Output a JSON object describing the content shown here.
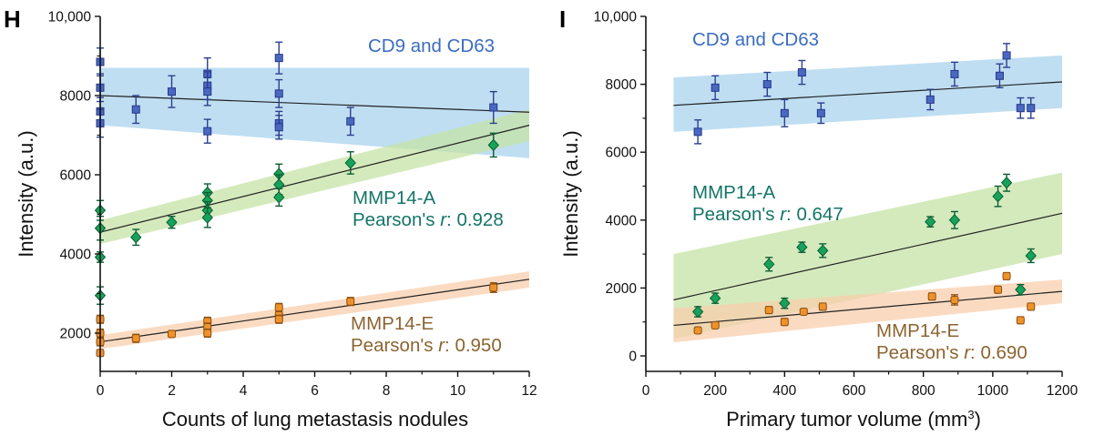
{
  "chart_data": [
    {
      "type": "scatter",
      "panel": "H",
      "xlabel": "Counts of lung metastasis nodules",
      "ylabel": "Intensity (a.u.)",
      "xlim": [
        0,
        12
      ],
      "ylim": [
        1000,
        10000
      ],
      "xticks": [
        0,
        2,
        4,
        6,
        8,
        10,
        12
      ],
      "yticks": [
        2000,
        4000,
        6000,
        8000,
        10000
      ],
      "ytick_labels": [
        "2000",
        "4000",
        "6000",
        "8000",
        "10,000"
      ],
      "grid": false,
      "fit_x": [
        0,
        12
      ],
      "series": [
        {
          "name": "CD9 and CD63",
          "annotation": [
            "CD9 and CD63"
          ],
          "color": "#4a68c0",
          "label_color": "#3a6cc0",
          "band_color": "#a9d3ee",
          "marker": "square",
          "points": [
            {
              "x": 0,
              "y": 8850,
              "e": 350
            },
            {
              "x": 0,
              "y": 8200,
              "e": 350
            },
            {
              "x": 0,
              "y": 7600,
              "e": 350
            },
            {
              "x": 0,
              "y": 7300,
              "e": 350
            },
            {
              "x": 1,
              "y": 7650,
              "e": 350
            },
            {
              "x": 2,
              "y": 8100,
              "e": 400
            },
            {
              "x": 3,
              "y": 8550,
              "e": 400
            },
            {
              "x": 3,
              "y": 8250,
              "e": 350
            },
            {
              "x": 3,
              "y": 8100,
              "e": 350
            },
            {
              "x": 3,
              "y": 7100,
              "e": 300
            },
            {
              "x": 5,
              "y": 8950,
              "e": 400
            },
            {
              "x": 5,
              "y": 8050,
              "e": 350
            },
            {
              "x": 5,
              "y": 7300,
              "e": 300
            },
            {
              "x": 5,
              "y": 7200,
              "e": 300
            },
            {
              "x": 7,
              "y": 7350,
              "e": 350
            },
            {
              "x": 11,
              "y": 7700,
              "e": 400
            }
          ],
          "fit_y": [
            8000,
            7580
          ],
          "band_lo": [
            7250,
            6420
          ],
          "band_hi": [
            8700,
            8700
          ]
        },
        {
          "name": "MMP14-A",
          "annotation": [
            "MMP14-A",
            "Pearson's r: 0.928"
          ],
          "color": "#17a25a",
          "label_color": "#147567",
          "band_color": "#c6e3a6",
          "marker": "diamond",
          "points": [
            {
              "x": 0,
              "y": 5100,
              "e": 250
            },
            {
              "x": 0,
              "y": 4650,
              "e": 300
            },
            {
              "x": 0,
              "y": 3920,
              "e": 130
            },
            {
              "x": 0,
              "y": 2950,
              "e": 220
            },
            {
              "x": 1,
              "y": 4420,
              "e": 200
            },
            {
              "x": 2,
              "y": 4800,
              "e": 150
            },
            {
              "x": 3,
              "y": 5550,
              "e": 220
            },
            {
              "x": 3,
              "y": 5350,
              "e": 200
            },
            {
              "x": 3,
              "y": 5100,
              "e": 220
            },
            {
              "x": 3,
              "y": 4920,
              "e": 250
            },
            {
              "x": 5,
              "y": 6020,
              "e": 250
            },
            {
              "x": 5,
              "y": 5750,
              "e": 250
            },
            {
              "x": 5,
              "y": 5430,
              "e": 220
            },
            {
              "x": 7,
              "y": 6300,
              "e": 280
            },
            {
              "x": 11,
              "y": 6750,
              "e": 300
            }
          ],
          "fit_y": [
            4550,
            7250
          ],
          "band_lo": [
            4250,
            6850
          ],
          "band_hi": [
            4850,
            7650
          ]
        },
        {
          "name": "MMP14-E",
          "annotation": [
            "MMP14-E",
            "Pearson's r: 0.950"
          ],
          "color": "#f0922a",
          "label_color": "#8c6430",
          "band_color": "#f8cfad",
          "marker": "circle",
          "points": [
            {
              "x": 0,
              "y": 2350,
              "e": 100
            },
            {
              "x": 0,
              "y": 2000,
              "e": 100
            },
            {
              "x": 0,
              "y": 1780,
              "e": 100
            },
            {
              "x": 0,
              "y": 1500,
              "e": 80
            },
            {
              "x": 1,
              "y": 1870,
              "e": 100
            },
            {
              "x": 2,
              "y": 1980,
              "e": 80
            },
            {
              "x": 3,
              "y": 2300,
              "e": 100
            },
            {
              "x": 3,
              "y": 2150,
              "e": 100
            },
            {
              "x": 3,
              "y": 2000,
              "e": 100
            },
            {
              "x": 5,
              "y": 2650,
              "e": 100
            },
            {
              "x": 5,
              "y": 2450,
              "e": 100
            },
            {
              "x": 5,
              "y": 2350,
              "e": 100
            },
            {
              "x": 7,
              "y": 2800,
              "e": 100
            },
            {
              "x": 11,
              "y": 3150,
              "e": 120
            }
          ],
          "fit_y": [
            1780,
            3360
          ],
          "band_lo": [
            1600,
            3150
          ],
          "band_hi": [
            1950,
            3560
          ]
        }
      ]
    },
    {
      "type": "scatter",
      "panel": "I",
      "xlabel": "Primary tumor volume (mm³)",
      "ylabel": "Intensity (a.u.)",
      "xlim": [
        0,
        1200
      ],
      "ylim": [
        -500,
        10000
      ],
      "xticks": [
        0,
        200,
        400,
        600,
        800,
        1000,
        1200
      ],
      "yticks": [
        0,
        2000,
        4000,
        6000,
        8000,
        10000
      ],
      "ytick_labels": [
        "0",
        "2000",
        "4000",
        "6000",
        "8000",
        "10,000"
      ],
      "grid": false,
      "fit_x": [
        80,
        1200
      ],
      "series": [
        {
          "name": "CD9 and CD63",
          "annotation": [
            "CD9 and CD63"
          ],
          "color": "#4a68c0",
          "label_color": "#3a6cc0",
          "band_color": "#a9d3ee",
          "marker": "square",
          "points": [
            {
              "x": 150,
              "y": 6600,
              "e": 350
            },
            {
              "x": 200,
              "y": 7900,
              "e": 350
            },
            {
              "x": 350,
              "y": 8000,
              "e": 350
            },
            {
              "x": 400,
              "y": 7150,
              "e": 400
            },
            {
              "x": 450,
              "y": 8350,
              "e": 350
            },
            {
              "x": 505,
              "y": 7150,
              "e": 300
            },
            {
              "x": 820,
              "y": 7550,
              "e": 300
            },
            {
              "x": 890,
              "y": 8300,
              "e": 350
            },
            {
              "x": 1020,
              "y": 8250,
              "e": 350
            },
            {
              "x": 1040,
              "y": 8850,
              "e": 350
            },
            {
              "x": 1080,
              "y": 7300,
              "e": 300
            },
            {
              "x": 1110,
              "y": 7300,
              "e": 300
            }
          ],
          "fit_y": [
            7380,
            8070
          ],
          "band_lo": [
            6600,
            7300
          ],
          "band_hi": [
            8200,
            8850
          ]
        },
        {
          "name": "MMP14-A",
          "annotation": [
            "MMP14-A",
            "Pearson's r: 0.647"
          ],
          "color": "#17a25a",
          "label_color": "#147567",
          "band_color": "#c6e3a6",
          "marker": "diamond",
          "points": [
            {
              "x": 150,
              "y": 1300,
              "e": 150
            },
            {
              "x": 200,
              "y": 1700,
              "e": 150
            },
            {
              "x": 355,
              "y": 2700,
              "e": 200
            },
            {
              "x": 400,
              "y": 1550,
              "e": 150
            },
            {
              "x": 450,
              "y": 3200,
              "e": 150
            },
            {
              "x": 510,
              "y": 3100,
              "e": 200
            },
            {
              "x": 820,
              "y": 3950,
              "e": 150
            },
            {
              "x": 890,
              "y": 4000,
              "e": 250
            },
            {
              "x": 1015,
              "y": 4700,
              "e": 300
            },
            {
              "x": 1040,
              "y": 5100,
              "e": 250
            },
            {
              "x": 1080,
              "y": 1950,
              "e": 150
            },
            {
              "x": 1110,
              "y": 2950,
              "e": 200
            }
          ],
          "fit_y": [
            1650,
            4200
          ],
          "band_lo": [
            500,
            3000
          ],
          "band_hi": [
            3000,
            5400
          ]
        },
        {
          "name": "MMP14-E",
          "annotation": [
            "MMP14-E",
            "Pearson's r: 0.690"
          ],
          "color": "#f0922a",
          "label_color": "#8c6430",
          "band_color": "#f8cfad",
          "marker": "circle",
          "points": [
            {
              "x": 150,
              "y": 750,
              "e": 80
            },
            {
              "x": 200,
              "y": 900,
              "e": 80
            },
            {
              "x": 355,
              "y": 1350,
              "e": 100
            },
            {
              "x": 400,
              "y": 1000,
              "e": 100
            },
            {
              "x": 455,
              "y": 1300,
              "e": 80
            },
            {
              "x": 510,
              "y": 1450,
              "e": 100
            },
            {
              "x": 825,
              "y": 1750,
              "e": 100
            },
            {
              "x": 890,
              "y": 1650,
              "e": 150
            },
            {
              "x": 1015,
              "y": 1950,
              "e": 100
            },
            {
              "x": 1040,
              "y": 2350,
              "e": 100
            },
            {
              "x": 1080,
              "y": 1050,
              "e": 100
            },
            {
              "x": 1110,
              "y": 1450,
              "e": 100
            }
          ],
          "fit_y": [
            900,
            1900
          ],
          "band_lo": [
            400,
            1550
          ],
          "band_hi": [
            1400,
            2250
          ]
        }
      ]
    }
  ]
}
